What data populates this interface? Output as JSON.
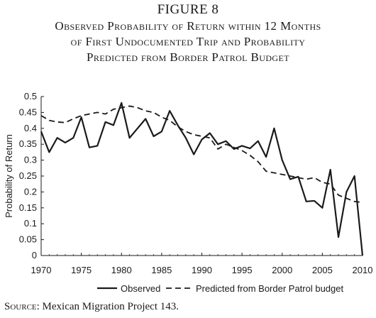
{
  "figure": {
    "label": "FIGURE 8",
    "title_lines": [
      "Observed Probability of Return within 12 Months",
      "of First Undocumented Trip and Probability",
      "Predicted from Border Patrol Budget"
    ]
  },
  "source": {
    "label": "Source:",
    "text": "Mexican Migration Project 143."
  },
  "chart_data": {
    "type": "line",
    "title": "Observed Probability of Return within 12 Months of First Undocumented Trip and Probability Predicted from Border Patrol Budget",
    "xlabel": "",
    "ylabel": "Probability of Return",
    "xlim": [
      1970,
      2010
    ],
    "ylim": [
      0,
      0.5
    ],
    "xticks": [
      1970,
      1975,
      1980,
      1985,
      1990,
      1995,
      2000,
      2005,
      2010
    ],
    "yticks": [
      0,
      0.05,
      0.1,
      0.15,
      0.2,
      0.25,
      0.3,
      0.35,
      0.4,
      0.45,
      0.5
    ],
    "ytick_labels": [
      "0",
      "0.05",
      "0.1",
      "0.15",
      "0.2",
      "0.25",
      "0.3",
      "0.35",
      "0.4",
      "0.45",
      "0.5"
    ],
    "grid": false,
    "legend_position": "bottom",
    "series": [
      {
        "name": "Observed",
        "style": "solid",
        "color": "#1a1a1a",
        "x": [
          1970,
          1971,
          1972,
          1973,
          1974,
          1975,
          1976,
          1977,
          1978,
          1979,
          1980,
          1981,
          1982,
          1983,
          1984,
          1985,
          1986,
          1987,
          1988,
          1989,
          1990,
          1991,
          1992,
          1993,
          1994,
          1995,
          1996,
          1997,
          1998,
          1999,
          2000,
          2001,
          2002,
          2003,
          2004,
          2005,
          2006,
          2007,
          2008,
          2009,
          2010
        ],
        "values": [
          0.39,
          0.325,
          0.37,
          0.355,
          0.37,
          0.435,
          0.34,
          0.345,
          0.42,
          0.41,
          0.48,
          0.37,
          0.4,
          0.43,
          0.375,
          0.39,
          0.455,
          0.41,
          0.37,
          0.318,
          0.365,
          0.385,
          0.35,
          0.36,
          0.335,
          0.345,
          0.337,
          0.36,
          0.31,
          0.4,
          0.3,
          0.24,
          0.248,
          0.17,
          0.172,
          0.15,
          0.27,
          0.058,
          0.2,
          0.25,
          0.0
        ]
      },
      {
        "name": "Predicted from Border Patrol budget",
        "style": "dashed",
        "color": "#1a1a1a",
        "x": [
          1970,
          1971,
          1972,
          1973,
          1974,
          1975,
          1976,
          1977,
          1978,
          1979,
          1980,
          1981,
          1982,
          1983,
          1984,
          1985,
          1986,
          1987,
          1988,
          1989,
          1990,
          1991,
          1992,
          1993,
          1994,
          1995,
          1996,
          1997,
          1998,
          1999,
          2000,
          2001,
          2002,
          2003,
          2004,
          2005,
          2006,
          2007,
          2008,
          2009,
          2010
        ],
        "values": [
          0.44,
          0.425,
          0.42,
          0.418,
          0.43,
          0.44,
          0.445,
          0.45,
          0.445,
          0.46,
          0.465,
          0.47,
          0.465,
          0.455,
          0.45,
          0.435,
          0.425,
          0.405,
          0.39,
          0.38,
          0.375,
          0.37,
          0.335,
          0.35,
          0.34,
          0.33,
          0.315,
          0.295,
          0.265,
          0.26,
          0.255,
          0.25,
          0.245,
          0.24,
          0.245,
          0.23,
          0.225,
          0.19,
          0.18,
          0.17,
          0.167
        ]
      }
    ]
  }
}
